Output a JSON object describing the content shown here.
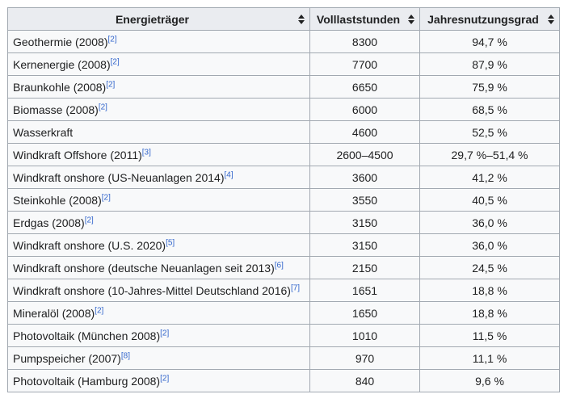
{
  "headers": [
    {
      "label": "Energieträger"
    },
    {
      "label": "Volllaststunden"
    },
    {
      "label": "Jahresnutzungsgrad"
    }
  ],
  "rows": [
    {
      "name": "Geothermie (2008)",
      "ref": "[2]",
      "hours": "8300",
      "ratio": "94,7 %"
    },
    {
      "name": "Kernenergie (2008)",
      "ref": "[2]",
      "hours": "7700",
      "ratio": "87,9 %"
    },
    {
      "name": "Braunkohle (2008)",
      "ref": "[2]",
      "hours": "6650",
      "ratio": "75,9 %"
    },
    {
      "name": "Biomasse (2008)",
      "ref": "[2]",
      "hours": "6000",
      "ratio": "68,5 %"
    },
    {
      "name": "Wasserkraft",
      "ref": "",
      "hours": "4600",
      "ratio": "52,5 %"
    },
    {
      "name": "Windkraft Offshore (2011)",
      "ref": "[3]",
      "hours": "2600–4500",
      "ratio": "29,7 %–51,4 %"
    },
    {
      "name": "Windkraft onshore (US-Neuanlagen 2014)",
      "ref": "[4]",
      "hours": "3600",
      "ratio": "41,2 %"
    },
    {
      "name": "Steinkohle (2008)",
      "ref": "[2]",
      "hours": "3550",
      "ratio": "40,5 %"
    },
    {
      "name": "Erdgas (2008)",
      "ref": "[2]",
      "hours": "3150",
      "ratio": "36,0 %"
    },
    {
      "name": "Windkraft onshore (U.S. 2020)",
      "ref": "[5]",
      "hours": "3150",
      "ratio": "36,0 %"
    },
    {
      "name": "Windkraft onshore (deutsche Neuanlagen seit 2013)",
      "ref": "[6]",
      "hours": "2150",
      "ratio": "24,5 %"
    },
    {
      "name": "Windkraft onshore (10-Jahres-Mittel Deutschland 2016)",
      "ref": "[7]",
      "hours": "1651",
      "ratio": "18,8 %"
    },
    {
      "name": "Mineralöl (2008)",
      "ref": "[2]",
      "hours": "1650",
      "ratio": "18,8 %"
    },
    {
      "name": "Photovoltaik (München 2008)",
      "ref": "[2]",
      "hours": "1010",
      "ratio": "11,5 %"
    },
    {
      "name": "Pumpspeicher (2007)",
      "ref": "[8]",
      "hours": "970",
      "ratio": "11,1 %"
    },
    {
      "name": "Photovoltaik (Hamburg 2008)",
      "ref": "[2]",
      "hours": "840",
      "ratio": "9,6 %"
    }
  ],
  "icons": {
    "sort": "sort-icon"
  }
}
